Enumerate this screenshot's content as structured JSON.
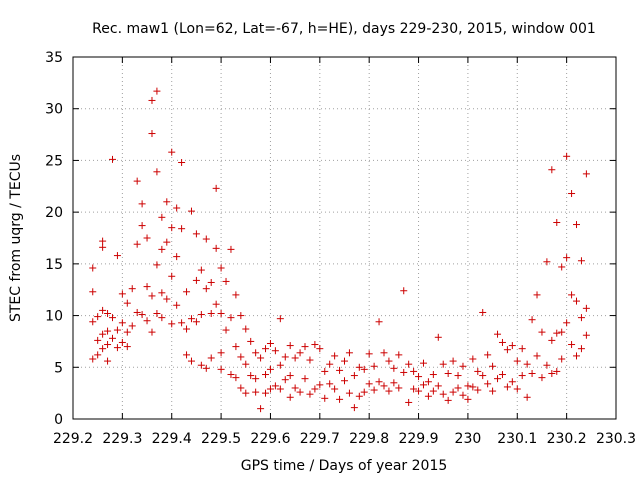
{
  "chart_data": {
    "type": "scatter",
    "title": "Rec. maw1 (Lon=62, Lat=-67, h=HE), days 229-230, 2015, window 001",
    "xlabel": "GPS time / Days of year 2015",
    "ylabel": "STEC from uqrg / TECUs",
    "xlim": [
      229.2,
      230.3
    ],
    "ylim": [
      0,
      35
    ],
    "xticks": [
      229.2,
      229.3,
      229.4,
      229.5,
      229.6,
      229.7,
      229.8,
      229.9,
      230.0,
      230.1,
      230.2,
      230.3
    ],
    "xtick_labels": [
      "229.2",
      "229.3",
      "229.4",
      "229.5",
      "229.6",
      "229.7",
      "229.8",
      "229.9",
      "230",
      "230.1",
      "230.2",
      "230.3"
    ],
    "yticks": [
      0,
      5,
      10,
      15,
      20,
      25,
      30,
      35
    ],
    "ytick_labels": [
      "0",
      "5",
      "10",
      "15",
      "20",
      "25",
      "30",
      "35"
    ],
    "grid": true,
    "marker": "+",
    "color": "#cc0000",
    "series": [
      {
        "x": [
          229.24,
          229.24,
          229.24,
          229.24,
          229.25,
          229.25,
          229.25,
          229.26,
          229.26,
          229.26,
          229.26,
          229.26,
          229.27,
          229.27,
          229.27,
          229.27,
          229.28,
          229.28,
          229.28,
          229.29,
          229.29,
          229.29,
          229.3,
          229.3,
          229.3,
          229.31,
          229.31,
          229.31,
          229.32,
          229.32,
          229.33,
          229.33,
          229.33,
          229.34,
          229.34,
          229.34,
          229.35,
          229.35,
          229.35,
          229.36,
          229.36,
          229.36,
          229.36,
          229.37,
          229.37,
          229.37,
          229.37,
          229.38,
          229.38,
          229.38,
          229.38,
          229.39,
          229.39,
          229.39,
          229.4,
          229.4,
          229.4,
          229.4,
          229.41,
          229.41,
          229.41,
          229.42,
          229.42,
          229.42,
          229.43,
          229.43,
          229.43,
          229.44,
          229.44,
          229.44,
          229.45,
          229.45,
          229.45,
          229.46,
          229.46,
          229.46,
          229.47,
          229.47,
          229.47,
          229.48,
          229.48,
          229.48,
          229.49,
          229.49,
          229.49,
          229.5,
          229.5,
          229.5,
          229.5,
          229.51,
          229.51,
          229.52,
          229.52,
          229.52,
          229.53,
          229.53,
          229.53,
          229.54,
          229.54,
          229.54,
          229.55,
          229.55,
          229.55,
          229.56,
          229.56,
          229.57,
          229.57,
          229.57,
          229.58,
          229.58,
          229.59,
          229.59,
          229.59,
          229.6,
          229.6,
          229.6,
          229.61,
          229.61,
          229.62,
          229.62,
          229.62,
          229.63,
          229.63,
          229.64,
          229.64,
          229.64,
          229.65,
          229.65,
          229.66,
          229.66,
          229.67,
          229.67,
          229.68,
          229.68,
          229.69,
          229.69,
          229.7,
          229.7,
          229.71,
          229.71,
          229.72,
          229.72,
          229.73,
          229.73,
          229.74,
          229.74,
          229.75,
          229.75,
          229.76,
          229.76,
          229.77,
          229.77,
          229.78,
          229.78,
          229.79,
          229.79,
          229.8,
          229.8,
          229.81,
          229.81,
          229.82,
          229.82,
          229.83,
          229.83,
          229.84,
          229.84,
          229.85,
          229.85,
          229.86,
          229.86,
          229.87,
          229.87,
          229.88,
          229.88,
          229.89,
          229.89,
          229.9,
          229.9,
          229.91,
          229.91,
          229.92,
          229.92,
          229.93,
          229.93,
          229.94,
          229.94,
          229.95,
          229.95,
          229.96,
          229.96,
          229.97,
          229.97,
          229.98,
          229.98,
          229.99,
          229.99,
          230.0,
          230.0,
          230.01,
          230.01,
          230.02,
          230.02,
          230.03,
          230.03,
          230.04,
          230.04,
          230.05,
          230.05,
          230.06,
          230.06,
          230.07,
          230.07,
          230.08,
          230.08,
          230.09,
          230.09,
          230.1,
          230.1,
          230.11,
          230.11,
          230.12,
          230.12,
          230.13,
          230.13,
          230.14,
          230.14,
          230.15,
          230.15,
          230.16,
          230.16,
          230.17,
          230.17,
          230.17,
          230.18,
          230.18,
          230.18,
          230.19,
          230.19,
          230.19,
          230.2,
          230.2,
          230.2,
          230.21,
          230.21,
          230.21,
          230.22,
          230.22,
          230.22,
          230.23,
          230.23,
          230.23,
          230.24,
          230.24,
          230.24
        ],
        "y": [
          14.6,
          12.3,
          9.4,
          5.8,
          9.9,
          7.6,
          6.2,
          17.2,
          16.6,
          10.5,
          8.2,
          6.8,
          10.2,
          8.5,
          7.2,
          5.6,
          25.1,
          9.8,
          7.8,
          15.8,
          8.6,
          6.9,
          12.1,
          9.3,
          7.4,
          11.2,
          8.4,
          7.0,
          12.6,
          9.0,
          23.0,
          16.9,
          10.3,
          20.8,
          18.7,
          10.1,
          9.5,
          17.5,
          12.8,
          30.8,
          27.6,
          11.9,
          8.4,
          31.7,
          23.9,
          14.9,
          10.2,
          19.5,
          16.4,
          12.2,
          9.8,
          21.0,
          17.1,
          11.6,
          25.8,
          18.5,
          13.8,
          9.2,
          20.4,
          15.7,
          11.0,
          24.8,
          18.4,
          9.3,
          12.3,
          8.7,
          6.2,
          20.1,
          9.7,
          5.6,
          17.9,
          13.4,
          9.4,
          14.4,
          10.1,
          5.2,
          17.4,
          12.6,
          4.9,
          13.2,
          10.2,
          5.9,
          22.3,
          16.5,
          11.1,
          14.6,
          10.2,
          6.4,
          4.8,
          13.3,
          8.6,
          16.4,
          9.8,
          4.3,
          12.0,
          7.0,
          4.0,
          10.0,
          6.0,
          3.0,
          8.7,
          5.3,
          2.5,
          7.5,
          4.2,
          6.4,
          3.9,
          2.6,
          5.9,
          1.0,
          6.8,
          4.3,
          2.5,
          7.3,
          4.8,
          2.9,
          6.6,
          3.2,
          9.7,
          5.2,
          2.9,
          6.0,
          3.8,
          7.1,
          4.2,
          2.1,
          5.9,
          3.0,
          6.4,
          2.6,
          7.0,
          3.9,
          5.7,
          2.4,
          7.2,
          2.9,
          6.8,
          3.3,
          4.6,
          2.0,
          5.3,
          3.4,
          6.1,
          2.9,
          4.7,
          1.9,
          5.6,
          3.7,
          6.4,
          2.5,
          4.2,
          1.1,
          5.0,
          2.2,
          4.8,
          2.6,
          6.3,
          3.4,
          5.1,
          2.8,
          9.4,
          3.6,
          6.4,
          3.2,
          5.6,
          2.7,
          4.9,
          3.5,
          6.2,
          3.0,
          12.4,
          4.5,
          5.3,
          1.6,
          4.6,
          2.9,
          4.1,
          2.7,
          5.4,
          3.3,
          3.6,
          2.2,
          4.3,
          2.7,
          7.9,
          3.2,
          5.3,
          2.4,
          4.4,
          1.8,
          5.6,
          2.6,
          4.2,
          3.0,
          5.1,
          2.3,
          3.2,
          1.9,
          5.8,
          3.1,
          4.6,
          2.8,
          10.3,
          4.2,
          6.2,
          3.4,
          5.1,
          2.7,
          8.2,
          3.9,
          7.4,
          4.3,
          6.7,
          3.1,
          7.1,
          3.6,
          5.6,
          2.9,
          6.8,
          4.2,
          5.3,
          2.1,
          9.6,
          4.4,
          12.0,
          6.1,
          8.4,
          4.0,
          15.2,
          5.2,
          24.1,
          7.6,
          4.4,
          19.0,
          8.3,
          4.6,
          14.7,
          8.4,
          5.8,
          25.4,
          15.6,
          9.3,
          21.8,
          12.0,
          7.2,
          18.8,
          11.4,
          6.1,
          15.3,
          9.8,
          6.8,
          23.7,
          10.7,
          8.1
        ]
      }
    ]
  }
}
